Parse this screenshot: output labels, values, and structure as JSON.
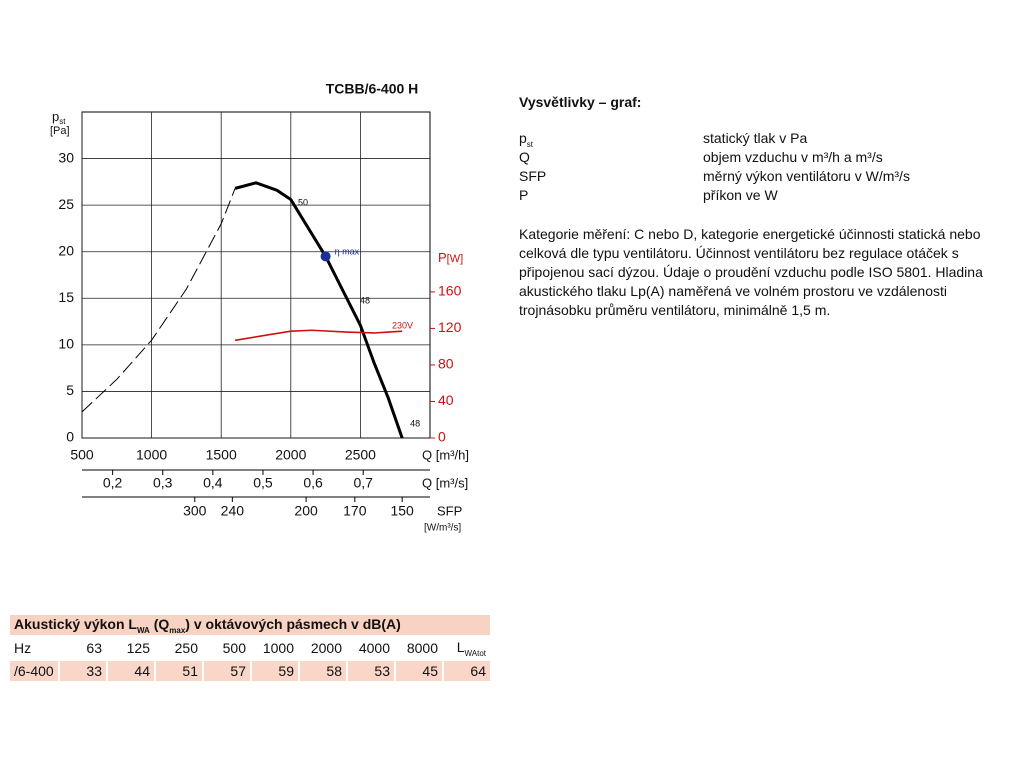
{
  "chart_data": {
    "type": "line",
    "title": "TCBB/6-400 H",
    "y_label": "p",
    "y_label_sub": "st",
    "y_unit": "[Pa]",
    "y2_label": "P",
    "y2_unit": "[W]",
    "x_label": "Q [m³/h]",
    "xlim": [
      500,
      3000
    ],
    "xticks": [
      500,
      1000,
      1500,
      2000,
      2500
    ],
    "ylim": [
      0,
      35
    ],
    "yticks": [
      0,
      5,
      10,
      15,
      20,
      25,
      30
    ],
    "y2lim": [
      0,
      357
    ],
    "y2ticks": [
      0,
      40,
      80,
      120,
      160
    ],
    "grid": true,
    "series": [
      {
        "color": "#000000",
        "style": "dashed",
        "x": [
          500,
          750,
          1000,
          1250,
          1500,
          1600
        ],
        "values": [
          2.8,
          6.3,
          10.5,
          16,
          23,
          26.8
        ]
      },
      {
        "color": "#000000",
        "style": "solid",
        "x": [
          1600,
          1750,
          1900,
          2000,
          2250,
          2500,
          2600,
          2700,
          2800
        ],
        "values": [
          26.8,
          27.4,
          26.6,
          25.6,
          19.5,
          12.1,
          8,
          4.3,
          0
        ]
      },
      {
        "color": "#d01010",
        "style": "solid",
        "axis": "y2",
        "x": [
          1600,
          1800,
          2000,
          2150,
          2400,
          2600,
          2800
        ],
        "values": [
          107,
          112,
          117,
          118,
          116,
          115,
          117
        ]
      }
    ],
    "points": [
      {
        "label": "η max",
        "x": 2250,
        "y": 19.5,
        "color": "#1c2f9a"
      }
    ],
    "annotations": [
      {
        "text": "50",
        "x": 2052,
        "y": 25.2
      },
      {
        "text": "48",
        "x": 2497,
        "y": 14.7
      },
      {
        "text": "230V",
        "x": 2727,
        "y": 122.7,
        "axis": "y2",
        "color": "#d01010"
      },
      {
        "text": "48",
        "x": 2857,
        "y": 1.5
      }
    ],
    "q_m3s": {
      "label": "Q [m³/s]",
      "ticks": [
        {
          "value": 0.2,
          "label": "0,2"
        },
        {
          "value": 0.3,
          "label": "0,3"
        },
        {
          "value": 0.4,
          "label": "0,4"
        },
        {
          "value": 0.5,
          "label": "0,5"
        },
        {
          "value": 0.6,
          "label": "0,6"
        },
        {
          "value": 0.7,
          "label": "0,7"
        }
      ]
    },
    "sfp": {
      "label": "SFP",
      "unit": "[W/m³/s]",
      "ticks": [
        {
          "value": 300,
          "q": 1310
        },
        {
          "value": 240,
          "q": 1580
        },
        {
          "value": 200,
          "q": 2110
        },
        {
          "value": 170,
          "q": 2460
        },
        {
          "value": 150,
          "q": 2800
        }
      ]
    }
  },
  "legend": {
    "title": "Vysvětlivky – graf:",
    "rows": [
      {
        "symbol": "p",
        "sub": "st",
        "text": "statický tlak v Pa"
      },
      {
        "symbol": "Q",
        "text": "objem vzduchu v m³/h a m³/s"
      },
      {
        "symbol": "SFP",
        "text": "měrný výkon ventilátoru v W/m³/s"
      },
      {
        "symbol": "P",
        "text": "příkon ve W"
      }
    ],
    "note": "Kategorie měření: C nebo D, kategorie energetické účinnosti statická nebo celková dle typu ventilátoru. Účinnost ventilátoru bez regulace otáček s připojenou sací dýzou. Údaje o proudění vzduchu podle ISO 5801. Hladina akustického tlaku Lp(A) naměřená ve volném prostoru ve vzdálenosti trojnásobku průměru ventilátoru, minimálně 1,5 m."
  },
  "table": {
    "title": [
      "Akustický výkon L",
      "WA",
      " (Q",
      "max",
      ") v oktávových pásmech v dB(A)"
    ],
    "header": [
      "Hz",
      "63",
      "125",
      "250",
      "500",
      "1000",
      "2000",
      "4000",
      "8000"
    ],
    "total_header": [
      "L",
      "WAtot"
    ],
    "row": [
      "/6-400",
      "33",
      "44",
      "51",
      "57",
      "59",
      "58",
      "53",
      "45",
      "64"
    ]
  }
}
